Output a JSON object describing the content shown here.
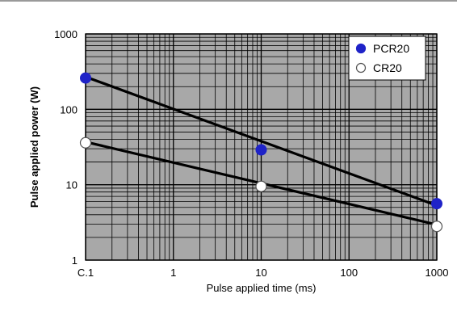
{
  "chart_data": {
    "type": "scatter",
    "title": "",
    "xlabel": "Pulse applied time (ms)",
    "ylabel": "Pulse applied power (W)",
    "x_scale": "log",
    "y_scale": "log",
    "xlim": [
      0.1,
      1000
    ],
    "ylim": [
      1,
      1000
    ],
    "x_tick_labels": [
      "C.1",
      "1",
      "10",
      "100",
      "1000"
    ],
    "y_tick_labels": [
      "1",
      "10",
      "100",
      "1000"
    ],
    "grid": true,
    "legend_position": "top-right",
    "series": [
      {
        "name": "PCR20",
        "marker": "filled-circle",
        "color": "#1f23c8",
        "points": [
          {
            "x": 0.1,
            "y": 260
          },
          {
            "x": 10,
            "y": 29
          },
          {
            "x": 1000,
            "y": 5.6
          }
        ],
        "trendline": {
          "from": {
            "x": 0.1,
            "y": 270
          },
          "to": {
            "x": 1000,
            "y": 5.3
          }
        }
      },
      {
        "name": "CR20",
        "marker": "open-circle",
        "color": "#ffffff",
        "points": [
          {
            "x": 0.1,
            "y": 36
          },
          {
            "x": 10,
            "y": 9.5
          },
          {
            "x": 1000,
            "y": 2.8
          }
        ],
        "trendline": {
          "from": {
            "x": 0.1,
            "y": 37
          },
          "to": {
            "x": 1000,
            "y": 2.95
          }
        }
      }
    ]
  },
  "colors": {
    "plot_background": "#a8a8a8",
    "grid": "#000000",
    "trendline": "#000000"
  }
}
